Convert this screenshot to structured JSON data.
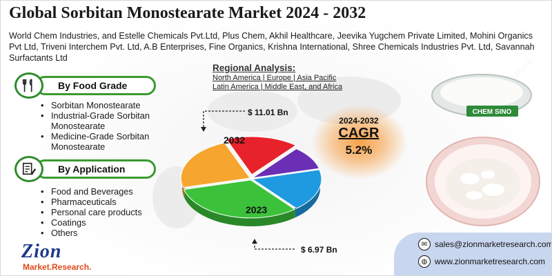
{
  "title": "Global Sorbitan Monostearate Market 2024 - 2032",
  "companies": "World Chem Industries, and Estelle Chemicals Pvt.Ltd, Plus Chem, Akhil Healthcare, Jeevika Yugchem Private Limited, Mohini Organics Pvt Ltd, Triveni Interchem Pvt. Ltd, A.B Enterprises, Fine Organics, Krishna International, Shree Chemicals Industries Pvt. Ltd, Savannah Surfactants Ltd",
  "segments": [
    {
      "label": "By Food Grade",
      "icon": "utensils-icon",
      "items": [
        "Sorbitan Monostearate",
        "Industrial-Grade Sorbitan Monostearate",
        "Medicine-Grade Sorbitan Monostearate"
      ]
    },
    {
      "label": "By Application",
      "icon": "document-pen-icon",
      "items": [
        "Food and Beverages",
        "Pharmaceuticals",
        "Personal care products",
        "Coatings",
        "Others"
      ]
    }
  ],
  "regional": {
    "title": "Regional Analysis:",
    "line1": "North America | Europe | Asia Pacific",
    "line2": "Latin America | Middle East, and Africa"
  },
  "market": {
    "value_2032": "$ 11.01 Bn",
    "value_2023": "$ 6.97 Bn",
    "label_2032": "2032",
    "label_2023": "2023"
  },
  "pie_slices": [
    {
      "color": "#e8222b",
      "share": 0.17
    },
    {
      "color": "#6a2fb5",
      "share": 0.1
    },
    {
      "color": "#1f9ae0",
      "share": 0.18
    },
    {
      "color": "#3cc23a",
      "share": 0.32
    },
    {
      "color": "#f6a52e",
      "share": 0.23
    }
  ],
  "cagr": {
    "years": "2024-2032",
    "label": "CAGR",
    "value": "5.2%"
  },
  "product_label": "CHEM SINO",
  "logo": {
    "name": "Zion",
    "sub": "Market.Research."
  },
  "contact": {
    "email": "sales@zionmarketresearch.com",
    "website": "www.zionmarketresearch.com"
  },
  "colors": {
    "accent_green": "#3a9a2f",
    "contact_panel": "#c9d6ef",
    "cagr_glow": "#f7a24a"
  }
}
